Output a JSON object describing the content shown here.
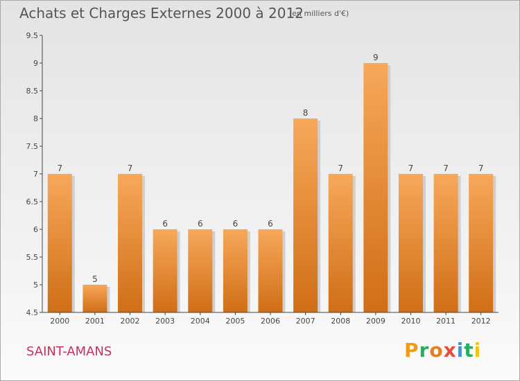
{
  "header": {
    "title": "Achats et Charges Externes 2000 à 2012",
    "unit": "(en milliers d'€)"
  },
  "footer": {
    "commune": "SAINT-AMANS",
    "brand": "Proxiti",
    "brand_letters": [
      {
        "ch": "P",
        "color": "#f39c12"
      },
      {
        "ch": "r",
        "color": "#27ae60"
      },
      {
        "ch": "o",
        "color": "#e67e22"
      },
      {
        "ch": "x",
        "color": "#e74c3c"
      },
      {
        "ch": "i",
        "color": "#3498db"
      },
      {
        "ch": "t",
        "color": "#27ae60"
      },
      {
        "ch": "i",
        "color": "#f1c40f"
      }
    ]
  },
  "colors": {
    "bar_top": "#f7a85a",
    "bar_bottom": "#d06e16",
    "commune": "#c2305b"
  },
  "chart_data": {
    "type": "bar",
    "categories": [
      "2000",
      "2001",
      "2002",
      "2003",
      "2004",
      "2005",
      "2006",
      "2007",
      "2008",
      "2009",
      "2010",
      "2011",
      "2012"
    ],
    "values": [
      7,
      5,
      7,
      6,
      6,
      6,
      6,
      8,
      7,
      9,
      7,
      7,
      7
    ],
    "labels": [
      "7",
      "5",
      "7",
      "6",
      "6",
      "6",
      "6",
      "8",
      "7",
      "9",
      "7",
      "7",
      "7"
    ],
    "ylim": [
      4.5,
      9.5
    ],
    "yticks": [
      "4.5",
      "5",
      "5.5",
      "6",
      "6.5",
      "7",
      "7.5",
      "8",
      "8.5",
      "9",
      "9.5"
    ],
    "grid": false
  }
}
